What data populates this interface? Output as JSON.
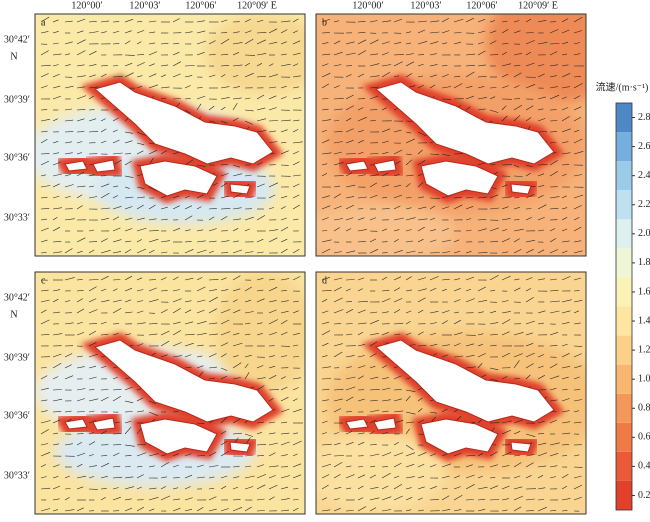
{
  "panels": [
    {
      "label": "a"
    },
    {
      "label": "b"
    },
    {
      "label": "c"
    },
    {
      "label": "d"
    }
  ],
  "lon_labels": [
    "120°00′",
    "120°03′",
    "120°06′",
    "120°09′ E"
  ],
  "lat_labels": [
    "30°42′",
    "30°39′",
    "30°36′",
    "30°33′"
  ],
  "lat_hemisphere": "N",
  "colorbar": {
    "title": "流速/(m·s⁻¹)",
    "range": [
      0.1,
      2.9
    ],
    "ticks": [
      0.2,
      0.4,
      0.6,
      0.8,
      {
        "value": 1,
        "label": "1.0"
      },
      1.2,
      1.4,
      1.6,
      1.8,
      {
        "value": 2,
        "label": "2.0"
      },
      2.2,
      2.4,
      2.6,
      2.8
    ],
    "colors": [
      "#e0402c",
      "#ea5a38",
      "#f07a45",
      "#f4985a",
      "#f8b670",
      "#fbd089",
      "#fde6a2",
      "#fbf2b8",
      "#eef6d6",
      "#dcf0f0",
      "#bfe0f0",
      "#9ccbea",
      "#76aedd",
      "#4f88c6"
    ]
  }
}
